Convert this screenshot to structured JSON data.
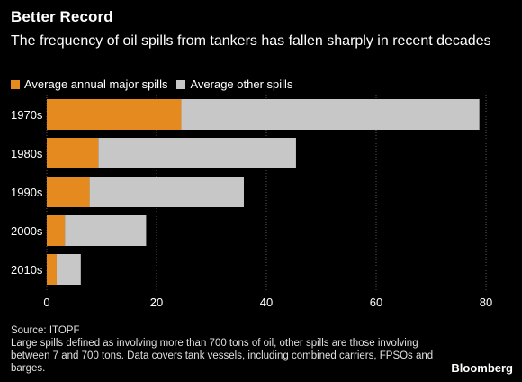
{
  "header": {
    "title": "Better Record",
    "subtitle": "The frequency of oil spills from tankers has fallen sharply in recent decades"
  },
  "chart_data": {
    "type": "bar",
    "orientation": "horizontal",
    "stacked": true,
    "categories": [
      "1970s",
      "1980s",
      "1990s",
      "2000s",
      "2010s"
    ],
    "series": [
      {
        "name": "Average annual major spills",
        "color": "#E58A1F",
        "values": [
          24.5,
          9.4,
          7.8,
          3.3,
          1.8
        ]
      },
      {
        "name": "Average other spills",
        "color": "#C7C7C7",
        "values": [
          54.3,
          36.0,
          28.1,
          14.8,
          4.4
        ]
      }
    ],
    "xlim": [
      0,
      80
    ],
    "xticks": [
      "0",
      "20",
      "40",
      "60",
      "80"
    ],
    "grid": true,
    "legend_position": "top-left"
  },
  "footer": {
    "source": "Source: ITOPF",
    "note": "Large spills defined as involving more than 700 tons of oil, other spills are those involving between 7 and 700 tons. Data covers tank vessels, including combined carriers, FPSOs and barges."
  },
  "brand": "Bloomberg"
}
